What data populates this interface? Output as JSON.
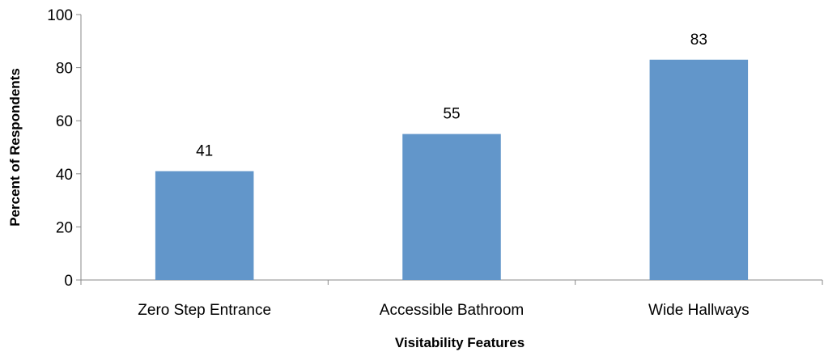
{
  "chart_data": {
    "type": "bar",
    "categories": [
      "Zero Step Entrance",
      "Accessible Bathroom",
      "Wide Hallways"
    ],
    "values": [
      41,
      55,
      83
    ],
    "xlabel": "Visitability Features",
    "ylabel": "Percent of Respondents",
    "ylim": [
      0,
      100
    ],
    "yticks": [
      0,
      20,
      40,
      60,
      80,
      100
    ],
    "grid": false,
    "legend": "none",
    "colors": {
      "bar": "#6296CA",
      "axis": "#898989"
    }
  }
}
